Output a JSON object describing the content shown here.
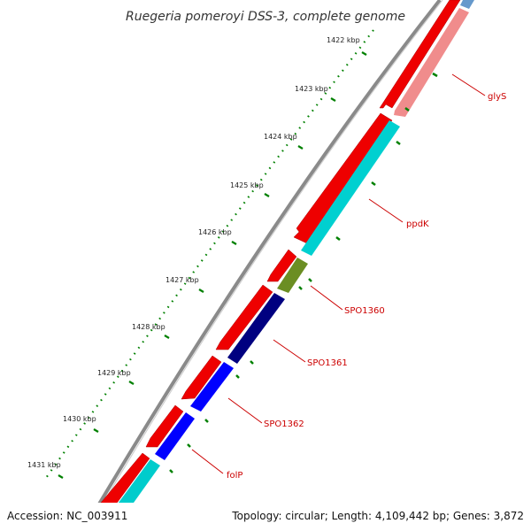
{
  "title": "Ruegeria pomeroyi DSS-3, complete genome",
  "footer": {
    "accession": "Accession: NC_003911",
    "summary": "Topology: circular; Length: 4,109,442 bp; Genes: 3,872"
  },
  "kbp_labels": [
    "1422 kbp",
    "1423 kbp",
    "1424 kbp",
    "1425 kbp",
    "1426 kbp",
    "1427 kbp",
    "1428 kbp",
    "1429 kbp",
    "1430 kbp",
    "1431 kbp"
  ],
  "genes": [
    {
      "name": "glyS",
      "color": "#f08080"
    },
    {
      "name": "ppdK",
      "color": "#00cccc"
    },
    {
      "name": "SPO1360",
      "color": "#6b8e23"
    },
    {
      "name": "SPO1361",
      "color": "#000080"
    },
    {
      "name": "SPO1362",
      "color": "#0000ff"
    },
    {
      "name": "folP",
      "color": "#0000ff"
    }
  ],
  "colors": {
    "forward_strand": "#ff0000",
    "backbone": "#888888",
    "gc_skew": "#008000",
    "label": "#cc0000"
  }
}
